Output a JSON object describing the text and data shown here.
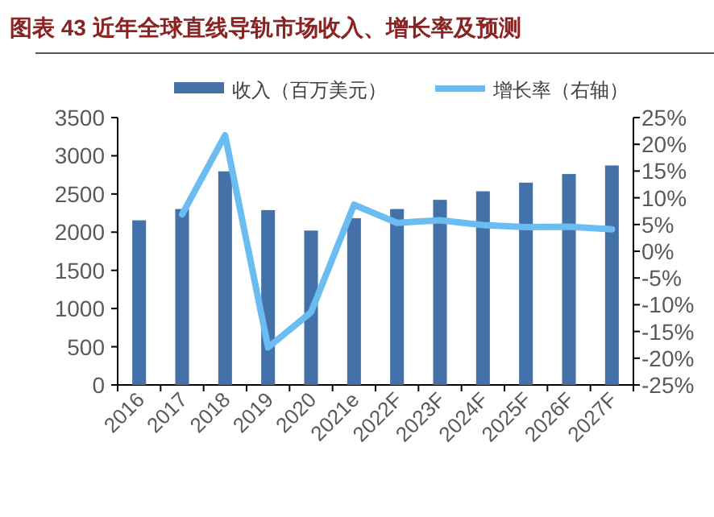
{
  "chart_data": {
    "type": "bar",
    "title": "图表 43 近年全球直线导轨市场收入、增长率及预测",
    "categories": [
      "2016",
      "2017",
      "2018",
      "2019",
      "2020",
      "2021e",
      "2022F",
      "2023F",
      "2024F",
      "2025F",
      "2026F",
      "2027F"
    ],
    "series": [
      {
        "name": "收入（百万美元）",
        "color": "#4472a8",
        "values": [
          2155,
          2303,
          2796,
          2289,
          2021,
          2183,
          2303,
          2423,
          2535,
          2648,
          2761,
          2873
        ]
      },
      {
        "name": "增长率（右轴）",
        "type": "line",
        "axis": "y2",
        "color": "#6bbcf0",
        "values": [
          null,
          6.9,
          21.7,
          -18.0,
          -11.4,
          8.7,
          5.3,
          5.8,
          4.9,
          4.5,
          4.6,
          4.1
        ]
      }
    ],
    "ylim": [
      0,
      3500
    ],
    "yticks": [
      0,
      500,
      1000,
      1500,
      2000,
      2500,
      3000,
      3500
    ],
    "y2lim": [
      -25,
      25
    ],
    "y2ticks": [
      {
        "value": -25,
        "label": "-25%"
      },
      {
        "value": -20,
        "label": "-20%"
      },
      {
        "value": -15,
        "label": "-15%"
      },
      {
        "value": -10,
        "label": "-10%"
      },
      {
        "value": -5,
        "label": "-5%"
      },
      {
        "value": 0,
        "label": "0%"
      },
      {
        "value": 5,
        "label": "5%"
      },
      {
        "value": 10,
        "label": "10%"
      },
      {
        "value": 15,
        "label": "15%"
      },
      {
        "value": 20,
        "label": "20%"
      },
      {
        "value": 25,
        "label": "25%"
      }
    ],
    "legend": "top"
  }
}
